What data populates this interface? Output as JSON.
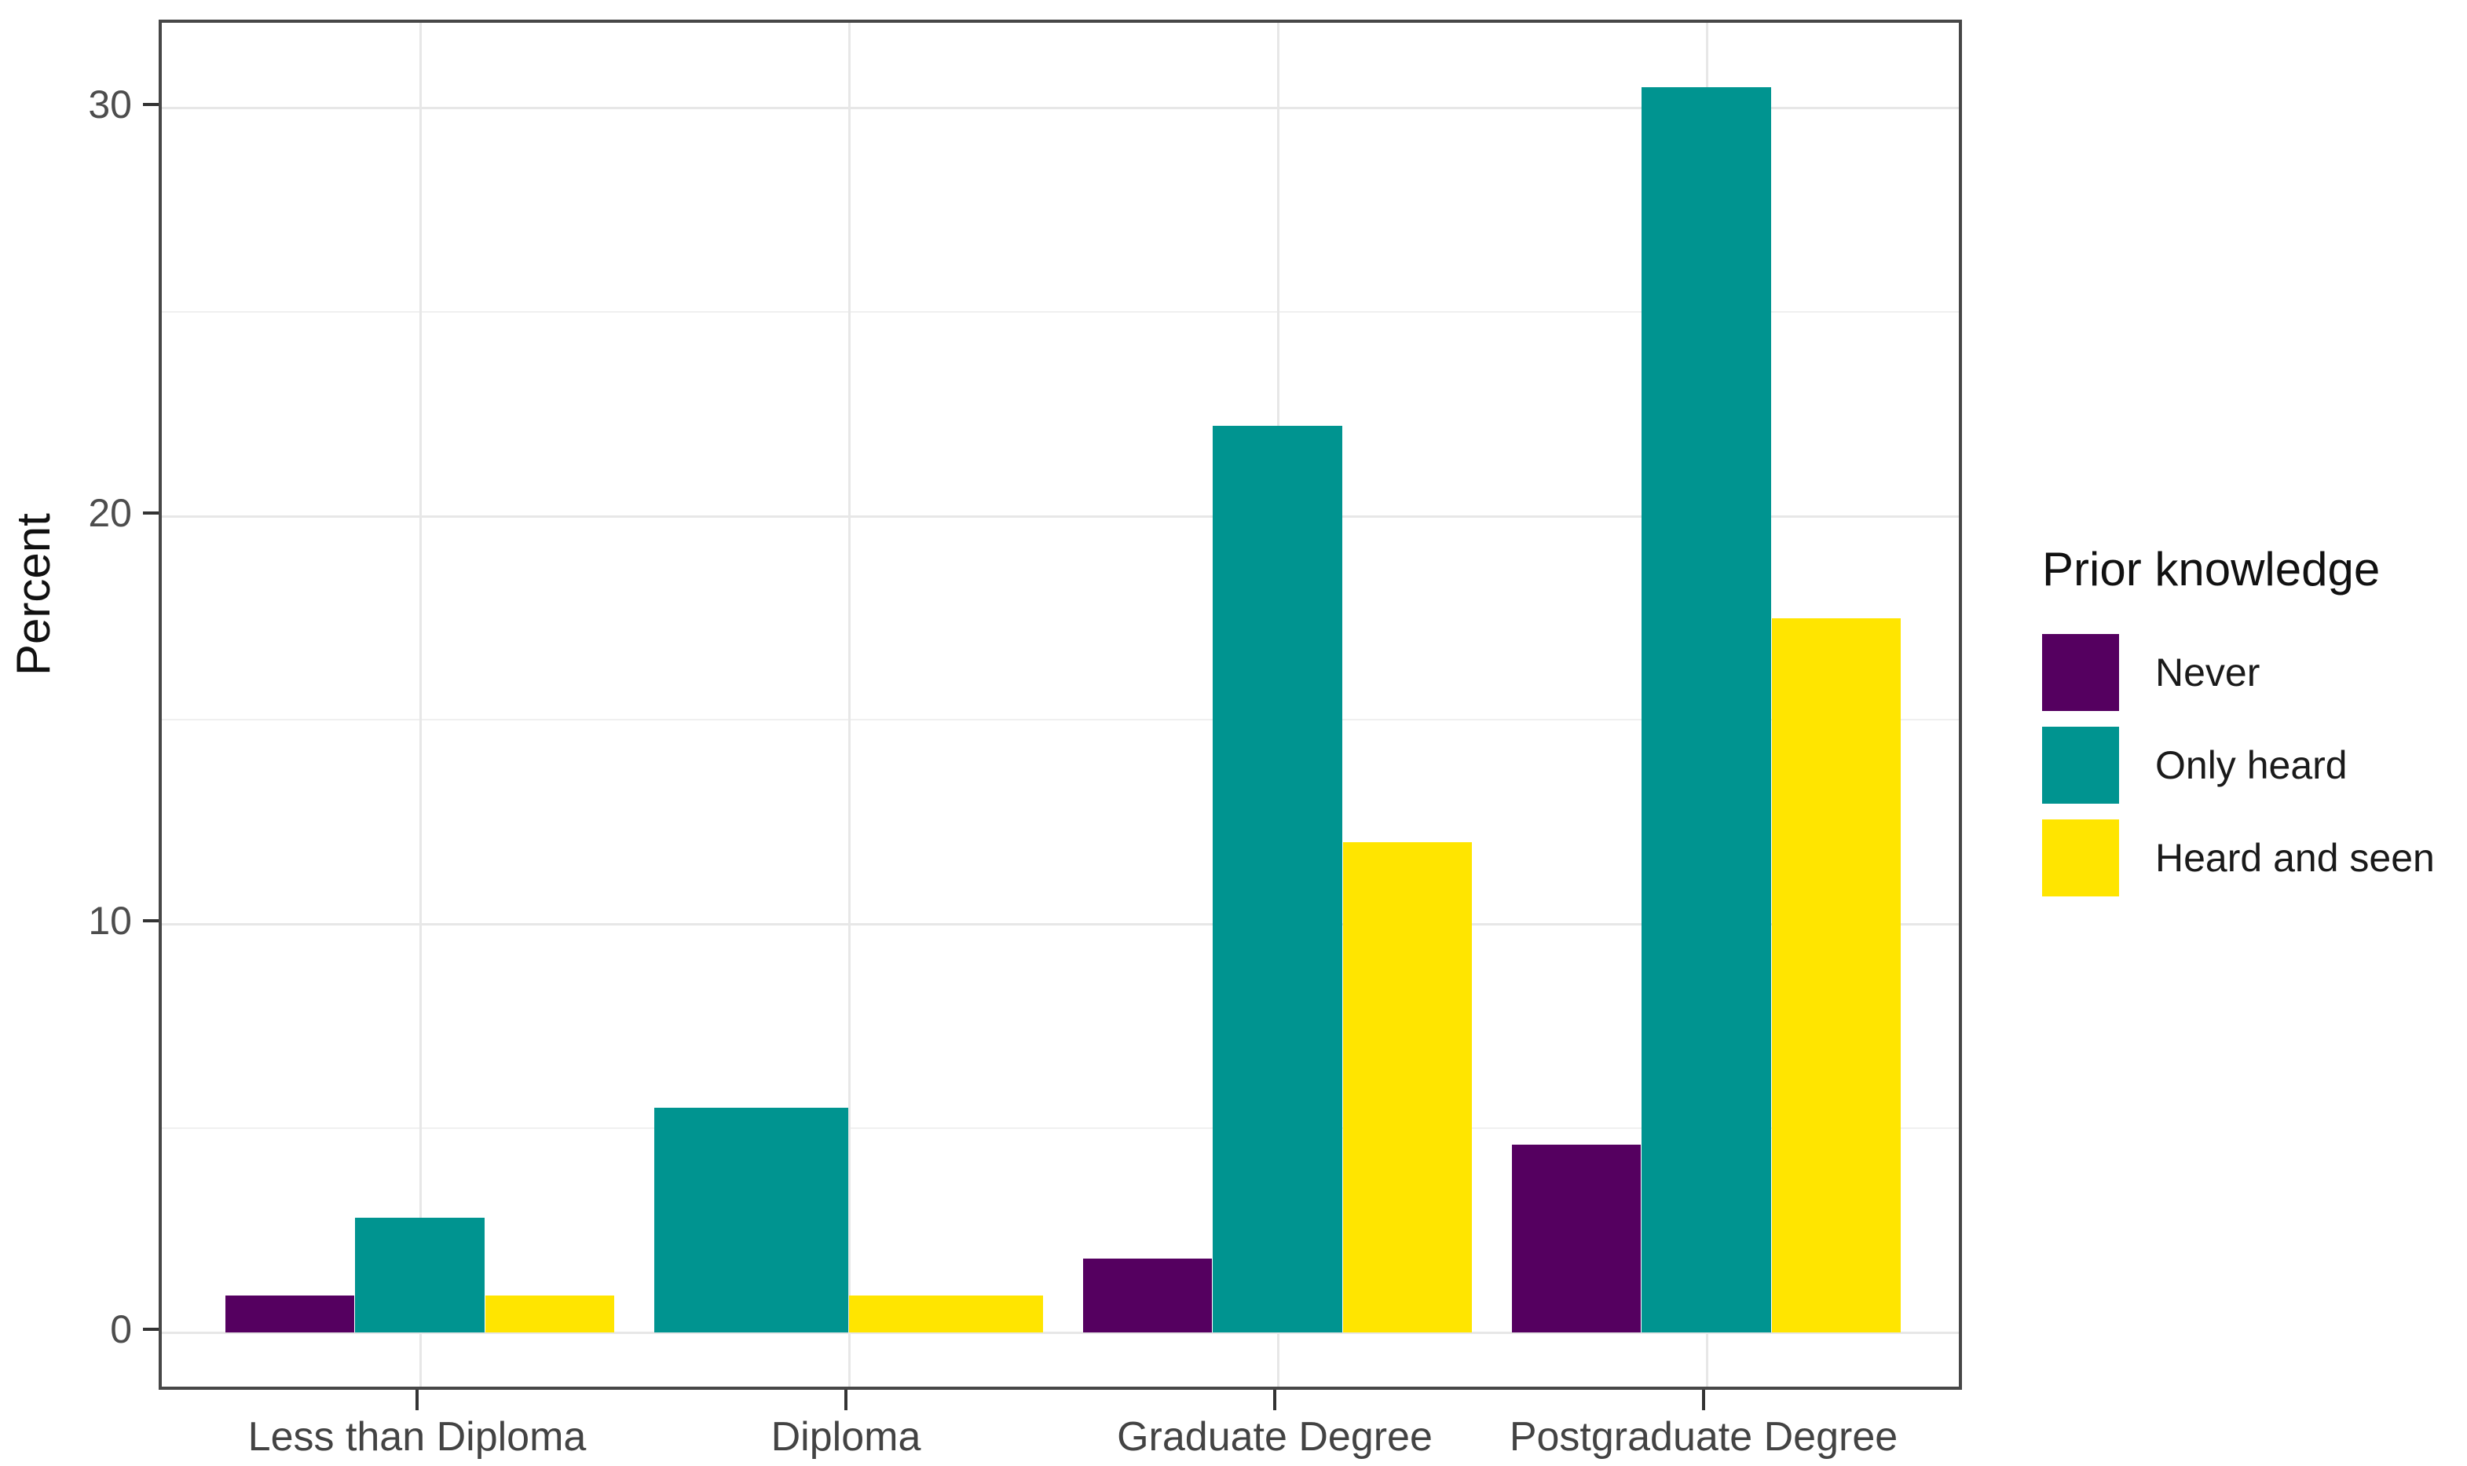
{
  "figure": {
    "background": "#ffffff",
    "panel_border_color": "#474747",
    "grid_major_color": "#e7e7e7",
    "grid_minor_color": "#f0f0f0",
    "tick_mark_color": "#333333",
    "axis_text_color": "#4d4d4d"
  },
  "chart_data": {
    "type": "bar",
    "title": "",
    "xlabel": "",
    "ylabel": "Percent",
    "categories": [
      "Less than Diploma",
      "Diploma",
      "Graduate Degree",
      "Postgraduate Degree"
    ],
    "series": [
      {
        "name": "Never",
        "color": "#550060",
        "values": [
          0.9,
          null,
          1.8,
          4.6
        ]
      },
      {
        "name": "Only heard",
        "color": "#009490",
        "values": [
          2.8,
          5.5,
          22.2,
          30.5
        ]
      },
      {
        "name": "Heard and seen",
        "color": "#FFE500",
        "values": [
          0.9,
          0.9,
          12.0,
          17.5
        ]
      }
    ],
    "ylim": [
      0,
      32.1
    ],
    "yticks": [
      0,
      10,
      20,
      30
    ],
    "yticks_minor": [
      5,
      15,
      25
    ],
    "grid": "on",
    "legend_title": "Prior knowledge",
    "legend_position": "right"
  }
}
